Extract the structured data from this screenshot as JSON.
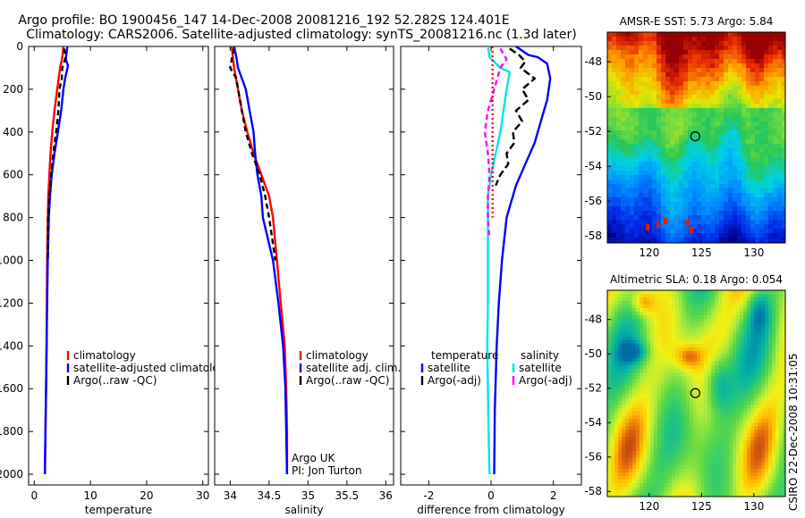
{
  "header": {
    "title_line1": "Argo profile: BO 1900456_147 14-Dec-2008 20081216_192 52.282S 124.401E",
    "title_line2": "Climatology: CARS2006. Satellite-adjusted climatology: synTS_20081216.nc (1.3d later)",
    "side_stamp": "CSIRO 22-Dec-2008 10:31:05"
  },
  "colors": {
    "climatology": "#ff0000",
    "satellite": "#0000ff",
    "argo": "#000000",
    "sal_satellite": "#00e5ee",
    "sal_argo": "#ff00ff"
  },
  "chart_data": [
    {
      "type": "line",
      "xlabel": "temperature",
      "ylim": [
        0,
        2050
      ],
      "xlim": [
        -1,
        31
      ],
      "yticks": [
        "0",
        "200",
        "400",
        "600",
        "800",
        "1000",
        "1200",
        "1400",
        "1600",
        "1800",
        "2000"
      ],
      "xticks": [
        "0",
        "10",
        "20",
        "30"
      ],
      "legend": [
        "climatology",
        "satellite-adjusted climatology",
        "Argo(..raw -QC)"
      ],
      "series": [
        {
          "name": "climatology",
          "color": "#ff0000",
          "dash": "",
          "points": [
            [
              5.2,
              0
            ],
            [
              5.0,
              50
            ],
            [
              4.6,
              100
            ],
            [
              4.1,
              200
            ],
            [
              3.6,
              300
            ],
            [
              3.2,
              400
            ],
            [
              2.9,
              500
            ],
            [
              2.7,
              600
            ],
            [
              2.5,
              700
            ],
            [
              2.4,
              800
            ],
            [
              2.3,
              1000
            ],
            [
              2.25,
              1200
            ],
            [
              2.2,
              1400
            ],
            [
              2.1,
              1600
            ],
            [
              2.0,
              1800
            ],
            [
              1.9,
              2000
            ]
          ]
        },
        {
          "name": "satellite-adjusted climatology",
          "color": "#0000ff",
          "dash": "",
          "points": [
            [
              5.9,
              0
            ],
            [
              5.6,
              60
            ],
            [
              6.0,
              90
            ],
            [
              5.5,
              150
            ],
            [
              5.2,
              200
            ],
            [
              4.8,
              300
            ],
            [
              4.2,
              400
            ],
            [
              3.6,
              500
            ],
            [
              3.1,
              600
            ],
            [
              2.8,
              700
            ],
            [
              2.6,
              800
            ],
            [
              2.4,
              1000
            ],
            [
              2.3,
              1200
            ],
            [
              2.2,
              1400
            ],
            [
              2.1,
              1600
            ],
            [
              2.0,
              1800
            ],
            [
              1.9,
              2000
            ]
          ]
        },
        {
          "name": "Argo(..raw -QC)",
          "color": "#000000",
          "dash": "6,4",
          "points": [
            [
              5.3,
              10
            ],
            [
              5.6,
              50
            ],
            [
              5.0,
              100
            ],
            [
              4.9,
              150
            ],
            [
              4.5,
              200
            ],
            [
              4.3,
              300
            ],
            [
              3.9,
              400
            ],
            [
              3.4,
              500
            ],
            [
              3.0,
              600
            ],
            [
              2.7,
              700
            ],
            [
              2.5,
              800
            ],
            [
              2.4,
              1000
            ]
          ]
        }
      ]
    },
    {
      "type": "line",
      "xlabel": "salinity",
      "ylim": [
        0,
        2050
      ],
      "xlim": [
        33.8,
        36.1
      ],
      "xticks": [
        "34",
        "34.5",
        "35",
        "35.5",
        "36"
      ],
      "legend": [
        "climatology",
        "satellite adj. clim.",
        "Argo(..raw -QC)"
      ],
      "annotation": [
        "Argo UK",
        "PI: Jon Turton"
      ],
      "series": [
        {
          "name": "climatology",
          "color": "#ff0000",
          "dash": "",
          "points": [
            [
              34.02,
              0
            ],
            [
              34.05,
              100
            ],
            [
              34.1,
              200
            ],
            [
              34.15,
              300
            ],
            [
              34.22,
              400
            ],
            [
              34.3,
              500
            ],
            [
              34.4,
              600
            ],
            [
              34.5,
              700
            ],
            [
              34.55,
              800
            ],
            [
              34.6,
              1000
            ],
            [
              34.65,
              1200
            ],
            [
              34.7,
              1400
            ],
            [
              34.72,
              1600
            ],
            [
              34.73,
              1800
            ],
            [
              34.73,
              2000
            ]
          ]
        },
        {
          "name": "satellite adj. clim.",
          "color": "#0000ff",
          "dash": "",
          "points": [
            [
              34.05,
              0
            ],
            [
              34.08,
              50
            ],
            [
              34.1,
              100
            ],
            [
              34.2,
              200
            ],
            [
              34.25,
              300
            ],
            [
              34.3,
              400
            ],
            [
              34.32,
              500
            ],
            [
              34.35,
              600
            ],
            [
              34.4,
              700
            ],
            [
              34.42,
              800
            ],
            [
              34.55,
              1000
            ],
            [
              34.62,
              1200
            ],
            [
              34.68,
              1400
            ],
            [
              34.71,
              1600
            ],
            [
              34.72,
              1800
            ],
            [
              34.73,
              2000
            ]
          ]
        },
        {
          "name": "Argo(..raw -QC)",
          "color": "#000000",
          "dash": "6,4",
          "points": [
            [
              34.05,
              10
            ],
            [
              34.02,
              60
            ],
            [
              34.0,
              100
            ],
            [
              34.08,
              150
            ],
            [
              34.1,
              200
            ],
            [
              34.15,
              300
            ],
            [
              34.2,
              400
            ],
            [
              34.28,
              500
            ],
            [
              34.38,
              600
            ],
            [
              34.45,
              700
            ],
            [
              34.5,
              800
            ],
            [
              34.58,
              1000
            ]
          ]
        }
      ]
    },
    {
      "type": "line",
      "xlabel": "difference from climatology",
      "ylim": [
        0,
        2050
      ],
      "xlim": [
        -2.9,
        2.9
      ],
      "xticks": [
        "-2",
        "0",
        "2"
      ],
      "legend_left_title": "temperature",
      "legend_right_title": "salinity",
      "legend_left": [
        "satellite",
        "Argo(-adj)"
      ],
      "legend_right": [
        "satellite",
        "Argo(-adj)"
      ],
      "series": [
        {
          "name": "temperature satellite",
          "color": "#0000ff",
          "dash": "",
          "points": [
            [
              0.8,
              0
            ],
            [
              1.2,
              40
            ],
            [
              1.5,
              50
            ],
            [
              1.8,
              80
            ],
            [
              1.9,
              150
            ],
            [
              1.8,
              250
            ],
            [
              1.6,
              350
            ],
            [
              1.4,
              450
            ],
            [
              1.1,
              550
            ],
            [
              0.8,
              650
            ],
            [
              0.5,
              800
            ],
            [
              0.35,
              1000
            ],
            [
              0.25,
              1200
            ],
            [
              0.18,
              1400
            ],
            [
              0.12,
              1700
            ],
            [
              0.1,
              2000
            ]
          ]
        },
        {
          "name": "temperature Argo(-adj)",
          "color": "#000000",
          "dash": "8,4",
          "points": [
            [
              0.6,
              10
            ],
            [
              0.9,
              40
            ],
            [
              1.1,
              70
            ],
            [
              0.95,
              100
            ],
            [
              1.4,
              150
            ],
            [
              1.0,
              200
            ],
            [
              1.2,
              250
            ],
            [
              0.8,
              300
            ],
            [
              1.0,
              350
            ],
            [
              0.7,
              400
            ],
            [
              0.75,
              450
            ],
            [
              0.5,
              500
            ],
            [
              0.55,
              550
            ],
            [
              0.3,
              600
            ],
            [
              0.15,
              650
            ]
          ]
        },
        {
          "name": "salinity satellite",
          "color": "#00e5ee",
          "dash": "",
          "points": [
            [
              -0.1,
              0
            ],
            [
              -0.05,
              50
            ],
            [
              0.3,
              100
            ],
            [
              0.6,
              120
            ],
            [
              0.5,
              200
            ],
            [
              0.4,
              300
            ],
            [
              0.3,
              400
            ],
            [
              0.15,
              500
            ],
            [
              0.0,
              600
            ],
            [
              -0.1,
              700
            ],
            [
              -0.1,
              800
            ],
            [
              -0.1,
              1000
            ],
            [
              -0.1,
              1200
            ],
            [
              -0.12,
              1400
            ],
            [
              -0.1,
              1600
            ],
            [
              -0.08,
              1800
            ],
            [
              -0.05,
              2000
            ]
          ]
        },
        {
          "name": "salinity Argo(-adj)",
          "color": "#ff00ff",
          "dash": "6,4",
          "points": [
            [
              0.3,
              10
            ],
            [
              0.5,
              60
            ],
            [
              0.3,
              100
            ],
            [
              0.1,
              200
            ],
            [
              -0.1,
              300
            ],
            [
              -0.2,
              400
            ],
            [
              -0.1,
              500
            ],
            [
              -0.05,
              600
            ],
            [
              -0.1,
              700
            ],
            [
              -0.1,
              800
            ],
            [
              -0.05,
              900
            ]
          ]
        },
        {
          "name": "temperature climatology",
          "color": "#ff0000",
          "dash": "2,3",
          "points": [
            [
              0.05,
              0
            ],
            [
              0.05,
              400
            ],
            [
              0.05,
              800
            ]
          ]
        }
      ]
    },
    {
      "type": "heatmap",
      "title": "AMSR-E SST: 5.73 Argo: 5.84",
      "xlim": [
        116,
        133
      ],
      "ylim": [
        -58.4,
        -46.3
      ],
      "xticks": [
        "120",
        "125",
        "130"
      ],
      "yticks": [
        "-48",
        "-50",
        "-52",
        "-54",
        "-56",
        "-58"
      ],
      "marker": [
        124.4,
        -52.28
      ]
    },
    {
      "type": "heatmap",
      "title": "Altimetric SLA: 0.18 Argo: 0.054",
      "xlim": [
        116,
        133
      ],
      "ylim": [
        -58.3,
        -46.3
      ],
      "xticks": [
        "120",
        "125",
        "130"
      ],
      "yticks": [
        "-48",
        "-50",
        "-52",
        "-54",
        "-56",
        "-58"
      ],
      "marker": [
        124.4,
        -52.28
      ]
    }
  ]
}
